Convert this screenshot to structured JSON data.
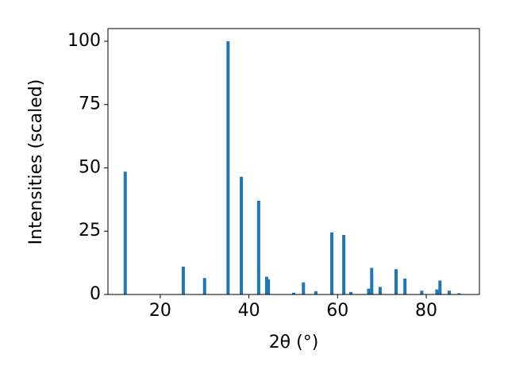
{
  "chart_data": {
    "type": "bar",
    "x_label": "2θ (°)",
    "y_label": "Intensities (scaled)",
    "x": [
      12.1,
      25.2,
      30.0,
      35.3,
      38.3,
      42.2,
      44.0,
      44.4,
      50.1,
      52.3,
      55.1,
      58.7,
      61.4,
      63.0,
      67.0,
      67.7,
      69.6,
      73.2,
      75.2,
      79.0,
      82.4,
      83.1,
      85.2,
      87.4
    ],
    "values": [
      48.5,
      11,
      6.5,
      100,
      46.5,
      37,
      7,
      6,
      0.7,
      4.8,
      1.3,
      24.5,
      23.5,
      1,
      2.3,
      10.5,
      3,
      10,
      6.3,
      1.5,
      2,
      5.5,
      1.5,
      0.5
    ],
    "color": "#1f77b4",
    "xlim": [
      8.2,
      92.0
    ],
    "xticks": [
      20,
      40,
      60,
      80
    ],
    "ylim": [
      0,
      105
    ],
    "yticks": [
      0,
      25,
      50,
      75,
      100
    ]
  }
}
